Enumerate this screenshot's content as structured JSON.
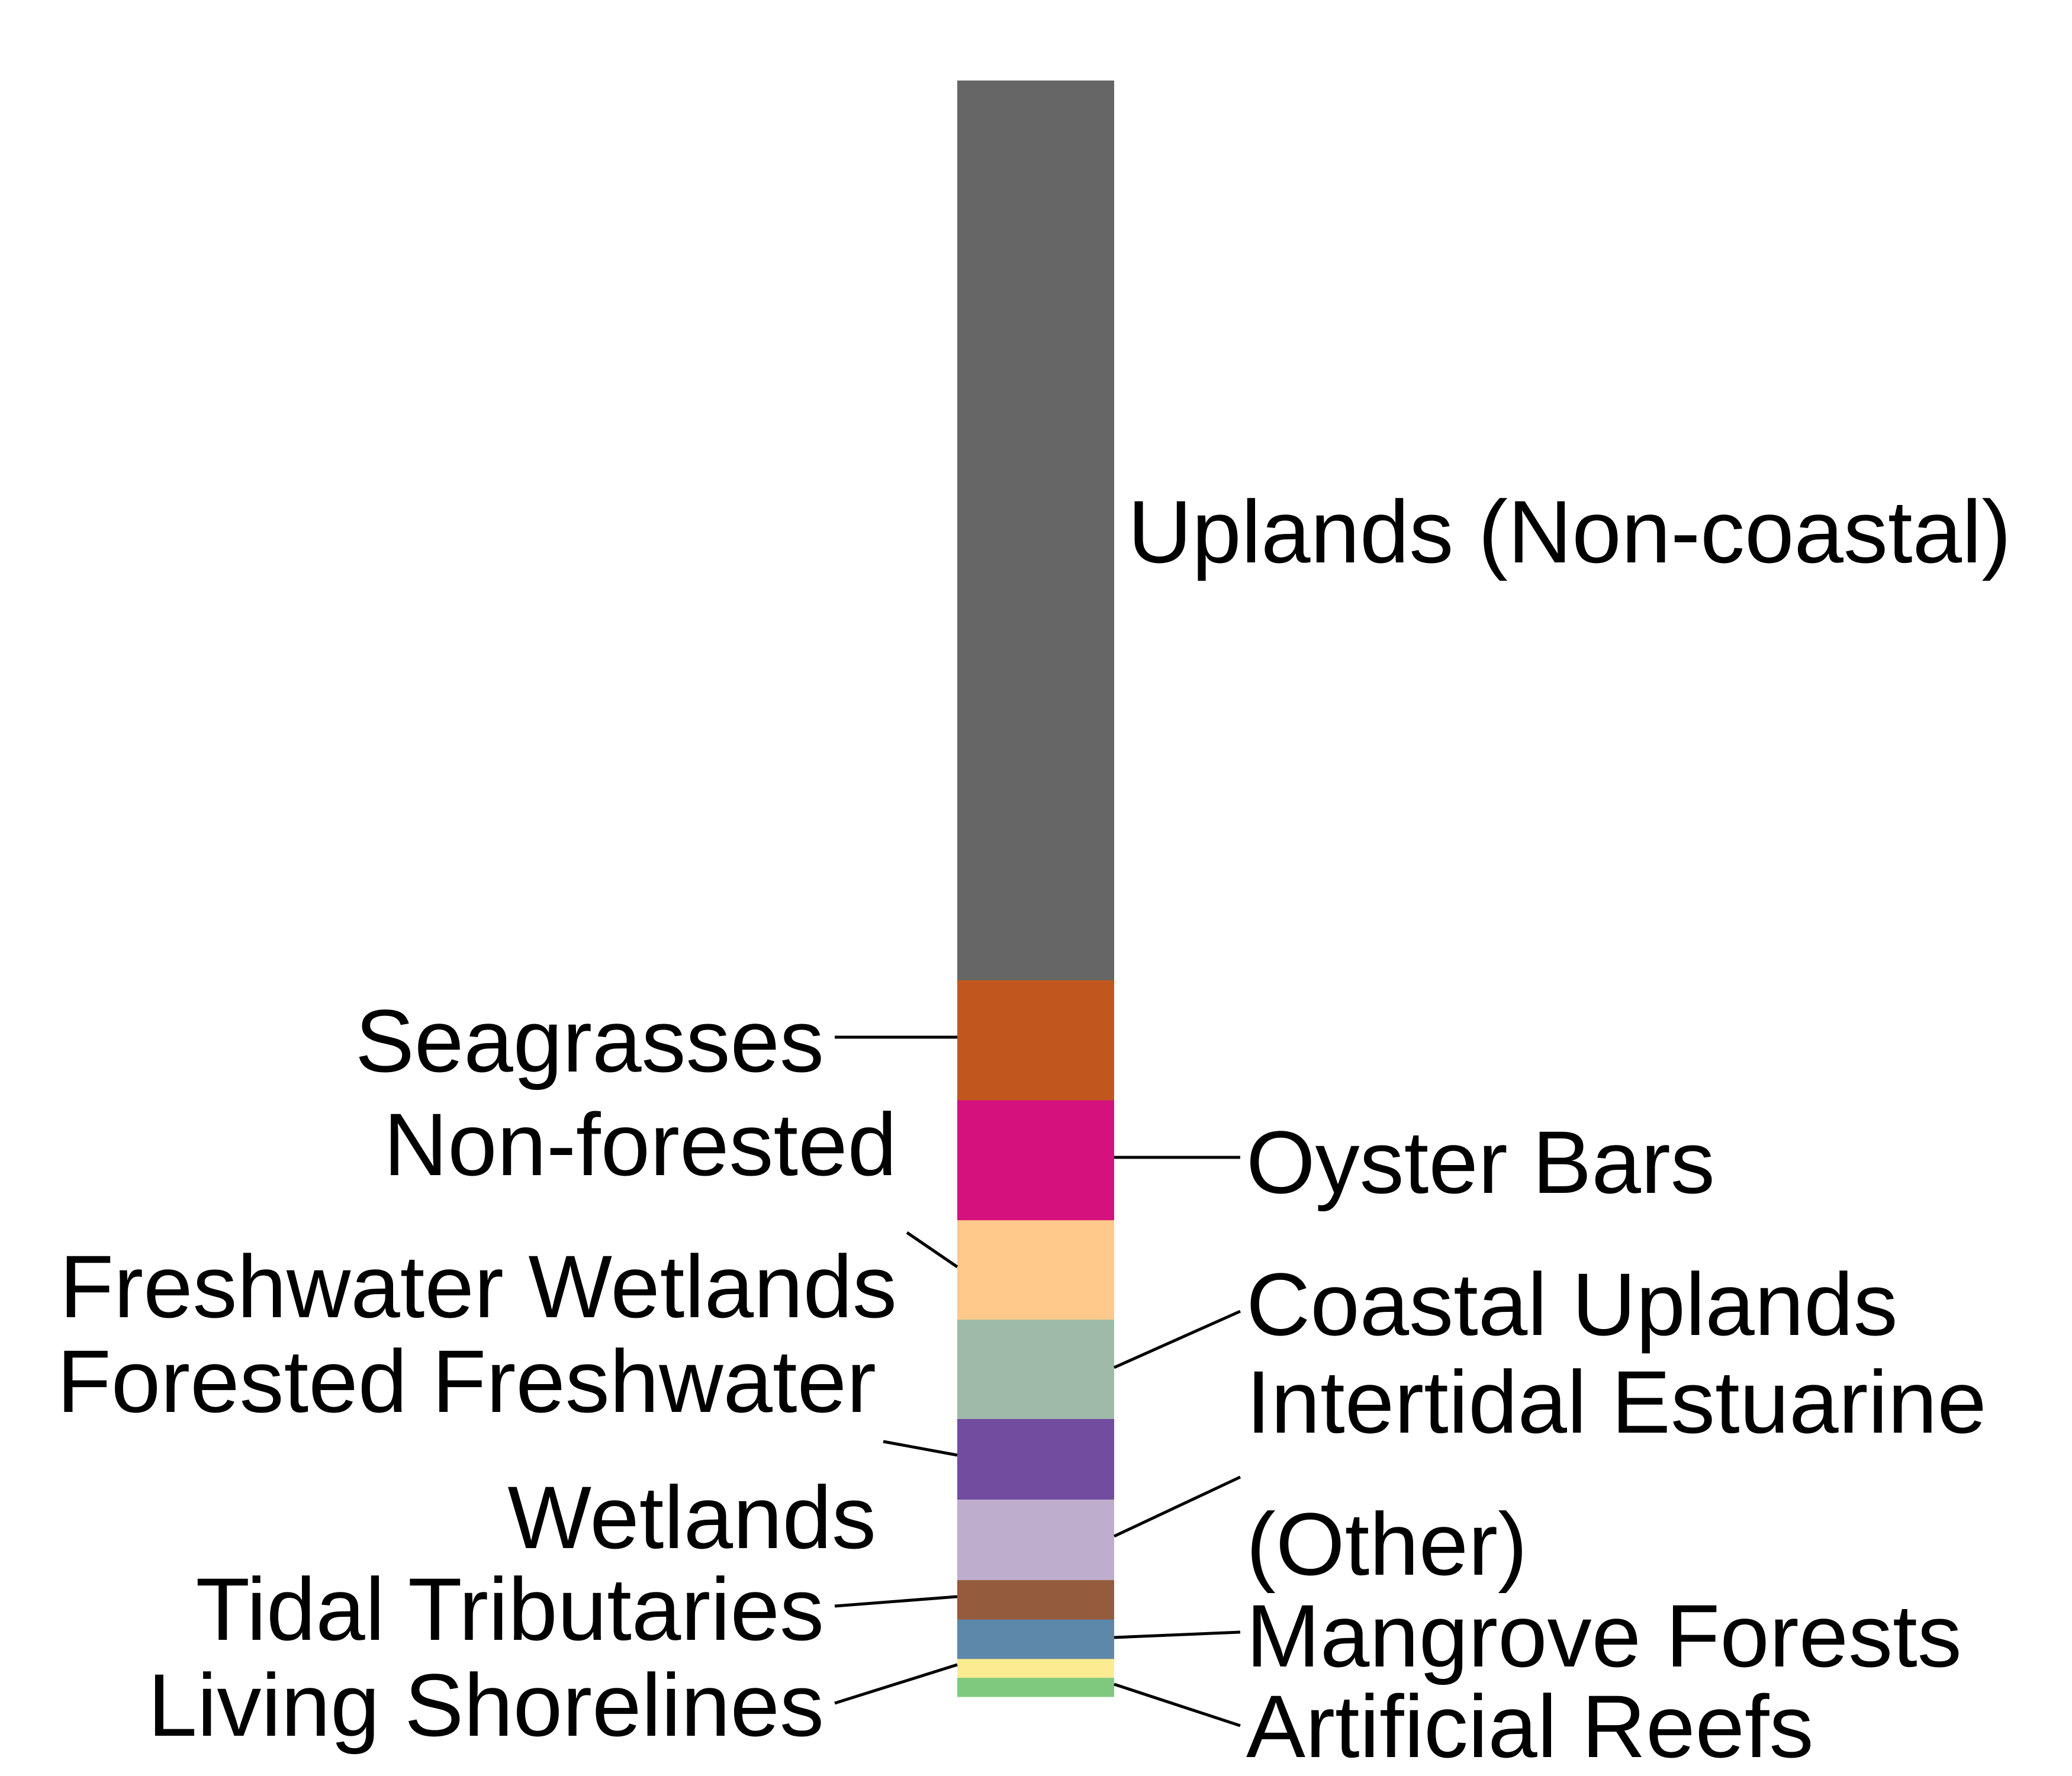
{
  "chart_data": {
    "type": "bar",
    "stacked": true,
    "orientation": "vertical",
    "title": "",
    "xlabel": "",
    "ylabel": "",
    "grid": false,
    "legend": "none",
    "series": [
      {
        "name": "Uplands (Non-coastal)",
        "label_lines": [
          "Uplands (Non-coastal)"
        ],
        "value": 52.5,
        "color": "#666666",
        "side": "right"
      },
      {
        "name": "Seagrasses",
        "label_lines": [
          "Seagrasses"
        ],
        "value": 7.0,
        "color": "#c1561f",
        "side": "left"
      },
      {
        "name": "Oyster Bars",
        "label_lines": [
          "Oyster Bars"
        ],
        "value": 7.0,
        "color": "#d4117c",
        "side": "right"
      },
      {
        "name": "Non-forested Freshwater Wetlands",
        "label_lines": [
          "Non-forested",
          "Freshwater Wetlands"
        ],
        "value": 5.8,
        "color": "#fec98b",
        "side": "left"
      },
      {
        "name": "Coastal Uplands",
        "label_lines": [
          "Coastal Uplands"
        ],
        "value": 5.8,
        "color": "#9fbaa9",
        "side": "right"
      },
      {
        "name": "Forested Freshwater Wetlands",
        "label_lines": [
          "Forested Freshwater",
          "Wetlands"
        ],
        "value": 4.7,
        "color": "#714c9f",
        "side": "left"
      },
      {
        "name": "Intertidal Estuarine (Other)",
        "label_lines": [
          "Intertidal Estuarine",
          "(Other)"
        ],
        "value": 4.7,
        "color": "#bfadcd",
        "side": "right"
      },
      {
        "name": "Tidal Tributaries",
        "label_lines": [
          "Tidal Tributaries"
        ],
        "value": 2.3,
        "color": "#955b3d",
        "side": "left"
      },
      {
        "name": "Mangrove Forests",
        "label_lines": [
          "Mangrove Forests"
        ],
        "value": 2.3,
        "color": "#5e88aa",
        "side": "right"
      },
      {
        "name": "Living Shorelines",
        "label_lines": [
          "Living Shorelines"
        ],
        "value": 1.1,
        "color": "#fdeb91",
        "side": "left"
      },
      {
        "name": "Artificial Reefs",
        "label_lines": [
          "Artificial Reefs"
        ],
        "value": 1.1,
        "color": "#7fc97f",
        "side": "right"
      }
    ]
  }
}
